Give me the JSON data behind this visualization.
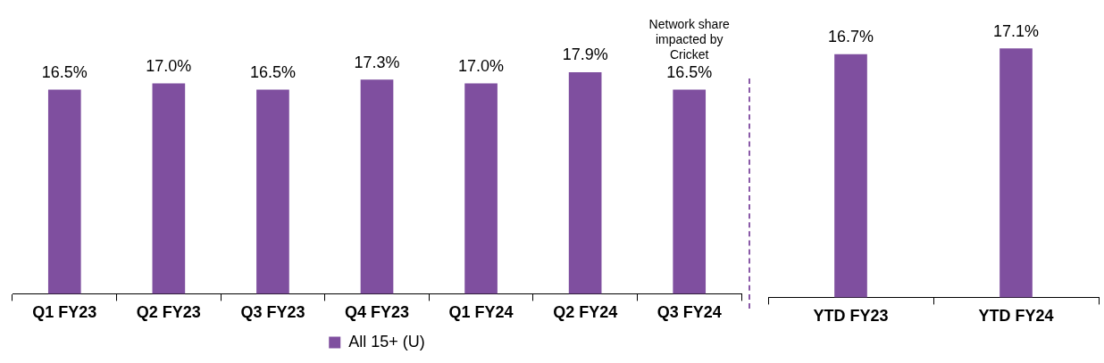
{
  "chart_data": [
    {
      "type": "bar",
      "categories": [
        "Q1 FY23",
        "Q2 FY23",
        "Q3 FY23",
        "Q4 FY23",
        "Q1 FY24",
        "Q2 FY24",
        "Q3 FY24"
      ],
      "series": [
        {
          "name": "All 15+ (U)",
          "color": "#7f4f9f",
          "values": [
            16.5,
            17.0,
            16.5,
            17.3,
            17.0,
            17.9,
            16.5
          ],
          "value_labels": [
            "16.5%",
            "17.0%",
            "16.5%",
            "17.3%",
            "17.0%",
            "17.9%",
            "16.5%"
          ]
        }
      ],
      "tick_labels": "x",
      "grid": false,
      "legend": "bottom",
      "annotations": [
        {
          "text": "Network share impacted by Cricket",
          "x": "Q3 FY24",
          "y": 16.5
        }
      ]
    },
    {
      "type": "bar",
      "categories": [
        "YTD FY23",
        "YTD FY24"
      ],
      "series": [
        {
          "color": "#7f4f9f",
          "values": [
            16.7,
            17.1
          ],
          "value_labels": [
            "16.7%",
            "17.1%"
          ]
        }
      ],
      "tick_labels": "x",
      "grid": false
    }
  ]
}
